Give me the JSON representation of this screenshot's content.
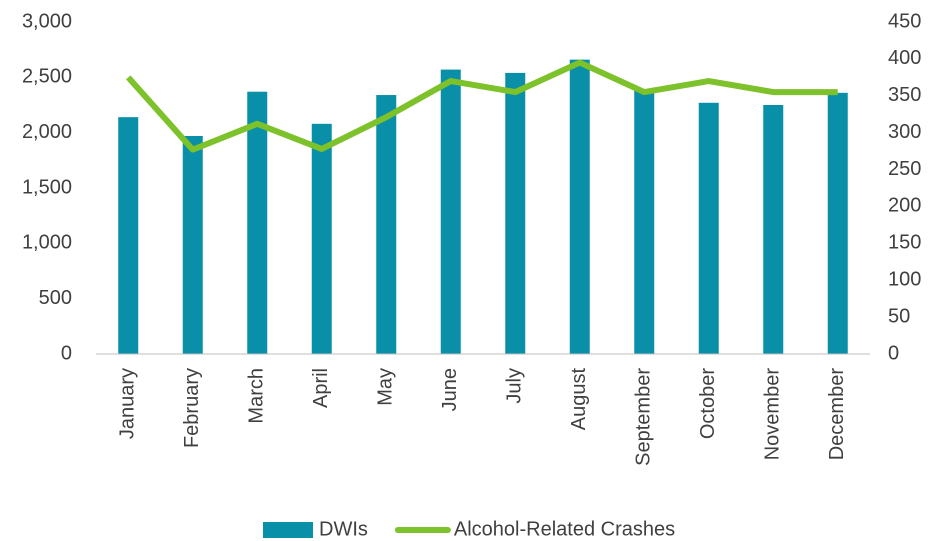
{
  "chart_data": {
    "type": "bar_line",
    "categories": [
      "January",
      "February",
      "March",
      "April",
      "May",
      "June",
      "July",
      "August",
      "September",
      "October",
      "November",
      "December"
    ],
    "series": [
      {
        "name": "DWIs",
        "type": "bar",
        "color": "#0a8fa8",
        "values": [
          2140,
          1970,
          2370,
          2080,
          2340,
          2570,
          2540,
          2660,
          2380,
          2270,
          2250,
          2360
        ]
      },
      {
        "name": "Alcohol-Related Crashes",
        "type": "line",
        "axis": "y2",
        "color": "#7dc12b",
        "values": [
          375,
          277,
          312,
          278,
          321,
          370,
          355,
          395,
          355,
          370,
          355,
          355
        ]
      }
    ],
    "ylim": [
      0,
      3000
    ],
    "yticks": [
      0,
      500,
      {
        "value": 1000,
        "label": "1,000"
      },
      {
        "value": 1500,
        "label": "1,500"
      },
      {
        "value": 2000,
        "label": "2,000"
      },
      {
        "value": 2500,
        "label": "2,500"
      },
      {
        "value": 3000,
        "label": "3,000"
      }
    ],
    "y2lim": [
      0,
      450
    ],
    "y2ticks": [
      0,
      50,
      100,
      150,
      200,
      250,
      300,
      350,
      400,
      450
    ],
    "grid": false,
    "legend": "bottom"
  }
}
